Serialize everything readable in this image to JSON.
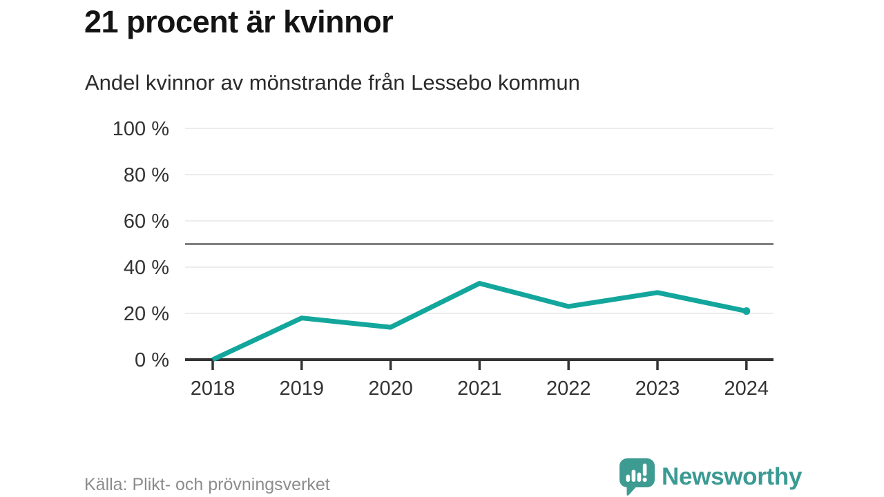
{
  "header": {
    "title": "21 procent är kvinnor",
    "subtitle": "Andel kvinnor av mönstrande från Lessebo kommun"
  },
  "footer": {
    "source": "Källa: Plikt- och prövningsverket",
    "brand": "Newsworthy"
  },
  "colors": {
    "line": "#13a69c",
    "axis": "#333333",
    "grid": "#e6e6e6",
    "reference_line": "#646464",
    "tick_text": "#333333",
    "muted_text": "#8c8c8c",
    "brand": "#3b9a93"
  },
  "chart_data": {
    "type": "line",
    "title": "21 procent är kvinnor",
    "subtitle": "Andel kvinnor av mönstrande från Lessebo kommun",
    "x": [
      2018,
      2019,
      2020,
      2021,
      2022,
      2023,
      2024
    ],
    "series": [
      {
        "name": "Andel kvinnor av mönstrande",
        "values": [
          0,
          18,
          14,
          33,
          23,
          29,
          21
        ]
      }
    ],
    "xlabel": "",
    "ylabel": "",
    "ylim": [
      0,
      100
    ],
    "yticks": [
      0,
      20,
      40,
      60,
      80,
      100
    ],
    "ytick_format": "{v} %",
    "reference_line_y": 50,
    "grid": true,
    "legend": "none",
    "end_marker_on_last_point": true,
    "source": "Källa: Plikt- och prövningsverket"
  }
}
